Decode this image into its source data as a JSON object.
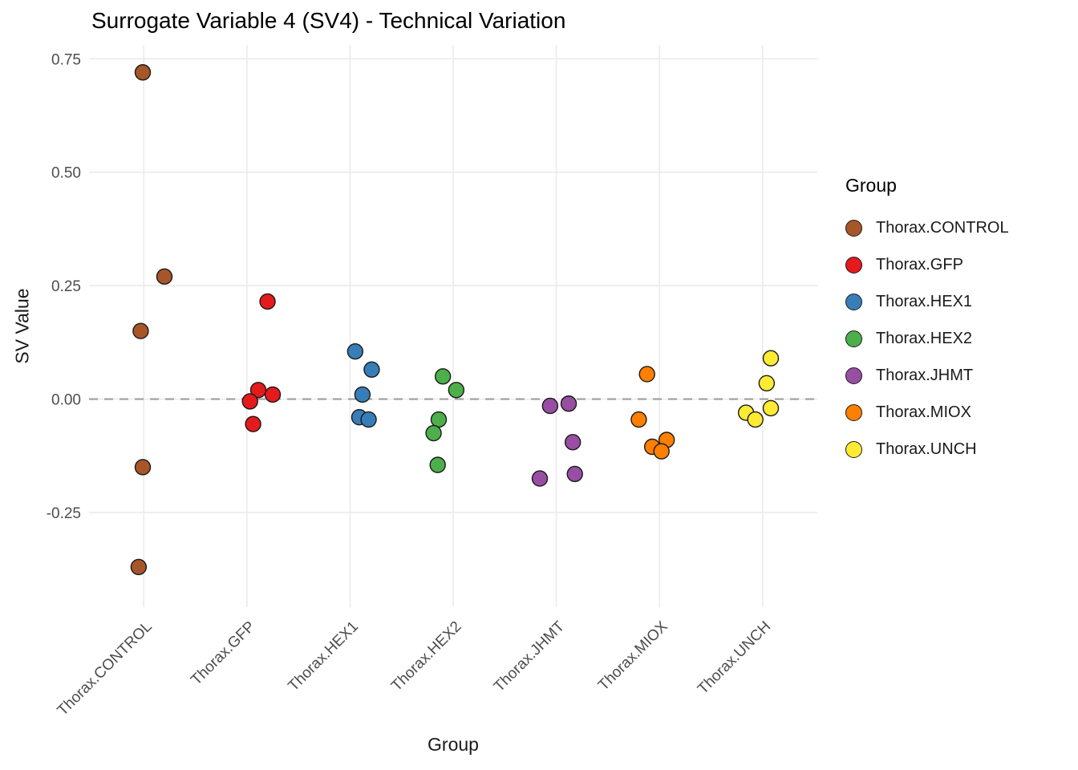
{
  "chart_data": {
    "type": "scatter",
    "title": "Surrogate Variable 4 (SV4) - Technical Variation",
    "xlabel": "Group",
    "ylabel": "SV Value",
    "legend_title": "Group",
    "legend_position": "right",
    "grid": true,
    "grid_color": "#ebebeb",
    "point_stroke": "#1a1a1a",
    "axis_text_color": "#4d4d4d",
    "ylim": [
      -0.455,
      0.777
    ],
    "yticks": [
      {
        "v": 0.75,
        "label": "0.75"
      },
      {
        "v": 0.5,
        "label": "0.50"
      },
      {
        "v": 0.25,
        "label": "0.25"
      },
      {
        "v": 0.0,
        "label": "0.00"
      },
      {
        "v": -0.25,
        "label": "-0.25"
      }
    ],
    "reference_line": {
      "y": 0.0,
      "style": "dashed",
      "color": "#9e9e9e"
    },
    "groups": [
      {
        "name": "Thorax.CONTROL",
        "color": "#A65628",
        "points": [
          {
            "y": 0.72,
            "jx": -0.01
          },
          {
            "y": 0.27,
            "jx": 0.2
          },
          {
            "y": 0.15,
            "jx": -0.03
          },
          {
            "y": -0.15,
            "jx": -0.01
          },
          {
            "y": -0.37,
            "jx": -0.05
          }
        ]
      },
      {
        "name": "Thorax.GFP",
        "color": "#E41A1C",
        "points": [
          {
            "y": 0.215,
            "jx": 0.2
          },
          {
            "y": 0.02,
            "jx": 0.11
          },
          {
            "y": 0.01,
            "jx": 0.25
          },
          {
            "y": -0.005,
            "jx": 0.03
          },
          {
            "y": -0.055,
            "jx": 0.06
          }
        ]
      },
      {
        "name": "Thorax.HEX1",
        "color": "#377EB8",
        "points": [
          {
            "y": 0.105,
            "jx": 0.05
          },
          {
            "y": 0.065,
            "jx": 0.21
          },
          {
            "y": 0.01,
            "jx": 0.12
          },
          {
            "y": -0.04,
            "jx": 0.09
          },
          {
            "y": -0.045,
            "jx": 0.18
          }
        ]
      },
      {
        "name": "Thorax.HEX2",
        "color": "#4DAF4A",
        "points": [
          {
            "y": 0.05,
            "jx": -0.1
          },
          {
            "y": 0.02,
            "jx": 0.03
          },
          {
            "y": -0.045,
            "jx": -0.14
          },
          {
            "y": -0.075,
            "jx": -0.19
          },
          {
            "y": -0.145,
            "jx": -0.15
          }
        ]
      },
      {
        "name": "Thorax.JHMT",
        "color": "#984EA3",
        "points": [
          {
            "y": -0.015,
            "jx": -0.06
          },
          {
            "y": -0.01,
            "jx": 0.12
          },
          {
            "y": -0.095,
            "jx": 0.16
          },
          {
            "y": -0.165,
            "jx": 0.18
          },
          {
            "y": -0.175,
            "jx": -0.16
          }
        ]
      },
      {
        "name": "Thorax.MIOX",
        "color": "#FF7F00",
        "points": [
          {
            "y": 0.055,
            "jx": -0.12
          },
          {
            "y": -0.045,
            "jx": -0.2
          },
          {
            "y": -0.09,
            "jx": 0.07
          },
          {
            "y": -0.105,
            "jx": -0.07
          },
          {
            "y": -0.115,
            "jx": 0.02
          }
        ]
      },
      {
        "name": "Thorax.UNCH",
        "color": "#FFEB33",
        "points": [
          {
            "y": 0.09,
            "jx": 0.08
          },
          {
            "y": 0.035,
            "jx": 0.04
          },
          {
            "y": -0.02,
            "jx": 0.08
          },
          {
            "y": -0.03,
            "jx": -0.16
          },
          {
            "y": -0.045,
            "jx": -0.07
          }
        ]
      }
    ]
  }
}
